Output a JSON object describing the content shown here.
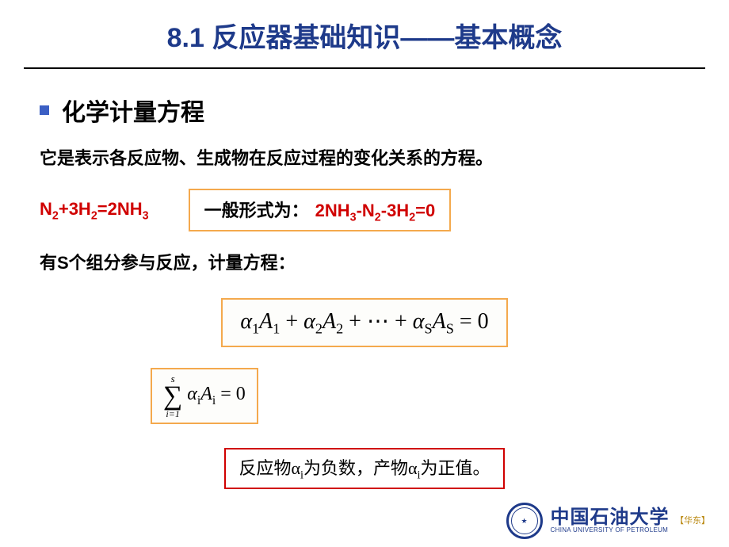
{
  "title": "8.1 反应器基础知识——基本概念",
  "section": {
    "heading": "化学计量方程",
    "description": "它是表示各反应物、生成物在反应过程的变化关系的方程。",
    "example_equation": "N₂+3H₂=2NH₃",
    "general_form": {
      "label": "一般形式为：",
      "formula": "2NH₃-N₂-3H₂=0"
    },
    "s_components": "有S个组分参与反应，计量方程：",
    "math_general": "α₁A₁ + α₂A₂ + ⋯ + αₛAₛ = 0",
    "sum": {
      "upper": "s",
      "lower": "i=1",
      "body": "αᵢAᵢ = 0"
    },
    "note": "反应物αᵢ为负数，产物αᵢ为正值。"
  },
  "footer": {
    "university_cn": "中国石油大学",
    "university_en": "CHINA UNIVERSITY OF PETROLEUM",
    "tag": "【华东】"
  },
  "colors": {
    "title": "#1e3a8a",
    "accent_red": "#d00000",
    "box_orange": "#f4a94d",
    "note_border": "#d00000",
    "bullet": "#3b5fc4"
  }
}
